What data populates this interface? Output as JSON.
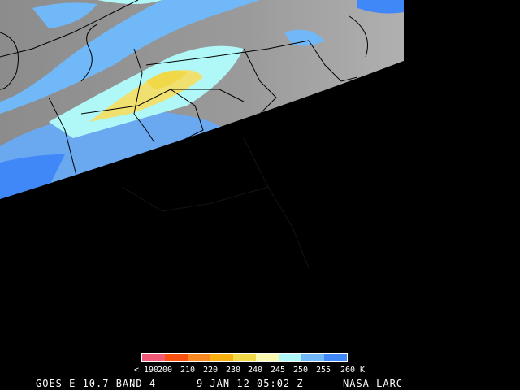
{
  "caption": {
    "satellite": "GOES-E 10.7 BAND 4",
    "datetime": "9 JAN 12 05:02 Z",
    "credit": "NASA LARC"
  },
  "colorbar": {
    "unit": "K",
    "tick_labels": [
      "< 190",
      "200",
      "210",
      "220",
      "230",
      "240",
      "245",
      "250",
      "255",
      "260 K"
    ],
    "colors": [
      "#f05878",
      "#f85010",
      "#f88820",
      "#f8b010",
      "#f0d848",
      "#f8f8b0",
      "#b0f8f8",
      "#70b8f8",
      "#4088f8"
    ]
  },
  "map": {
    "background": "#000000",
    "earth_gray": "#8a8a8a",
    "border_color": "#000000"
  }
}
